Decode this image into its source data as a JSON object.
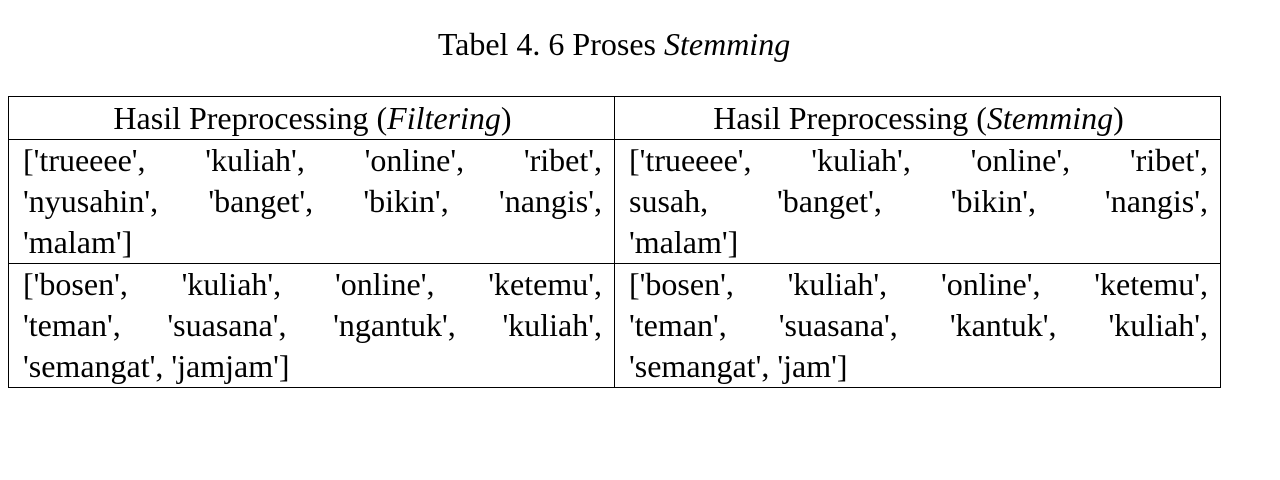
{
  "caption": {
    "prefix": "Tabel 4. 6 Proses ",
    "emphasis": "Stemming"
  },
  "table": {
    "headers": [
      {
        "prefix": "Hasil Preprocessing (",
        "emphasis": "Filtering",
        "suffix": ")"
      },
      {
        "prefix": "Hasil Preprocessing (",
        "emphasis": "Stemming",
        "suffix": ")"
      }
    ],
    "rows": [
      {
        "filtering": [
          "['trueeee', 'kuliah', 'online', 'ribet',",
          "'nyusahin', 'banget', 'bikin', 'nangis',",
          "'malam']"
        ],
        "stemming": [
          "['trueeee', 'kuliah', 'online', 'ribet',",
          "susah, 'banget', 'bikin', 'nangis',",
          "'malam']"
        ]
      },
      {
        "filtering": [
          "['bosen', 'kuliah', 'online', 'ketemu',",
          "'teman', 'suasana', 'ngantuk', 'kuliah',",
          "'semangat', 'jamjam']"
        ],
        "stemming": [
          "['bosen', 'kuliah', 'online', 'ketemu',",
          "'teman', 'suasana', 'kantuk', 'kuliah',",
          "'semangat', 'jam']"
        ]
      }
    ]
  }
}
